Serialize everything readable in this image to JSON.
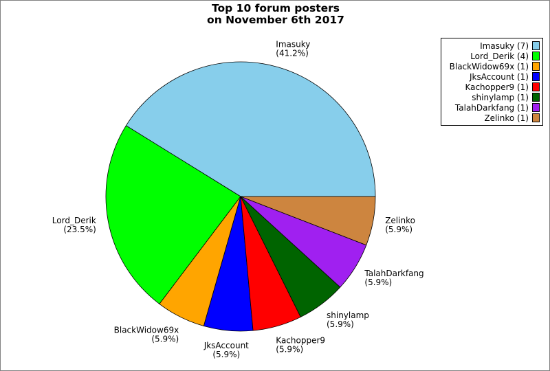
{
  "chart_data": {
    "type": "pie",
    "title_line1": "Top 10 forum posters",
    "title_line2": "on November 6th 2017",
    "slices": [
      {
        "name": "Imasuky",
        "count": 7,
        "percent_label": "(41.2%)",
        "legend_label": "Imasuky (7)",
        "color": "#87CEEB"
      },
      {
        "name": "Lord_Derik",
        "count": 4,
        "percent_label": "(23.5%)",
        "legend_label": "Lord_Derik (4)",
        "color": "#00FF00"
      },
      {
        "name": "BlackWidow69x",
        "count": 1,
        "percent_label": "(5.9%)",
        "legend_label": "BlackWidow69x (1)",
        "color": "#FFA500"
      },
      {
        "name": "JksAccount",
        "count": 1,
        "percent_label": "(5.9%)",
        "legend_label": "JksAccount (1)",
        "color": "#0000FF"
      },
      {
        "name": "Kachopper9",
        "count": 1,
        "percent_label": "(5.9%)",
        "legend_label": "Kachopper9 (1)",
        "color": "#FF0000"
      },
      {
        "name": "shinylamp",
        "count": 1,
        "percent_label": "(5.9%)",
        "legend_label": "shinylamp (1)",
        "color": "#006400"
      },
      {
        "name": "TalahDarkfang",
        "count": 1,
        "percent_label": "(5.9%)",
        "legend_label": "TalahDarkfang (1)",
        "color": "#A020F0"
      },
      {
        "name": "Zelinko",
        "count": 1,
        "percent_label": "(5.9%)",
        "legend_label": "Zelinko (1)",
        "color": "#CD853F"
      }
    ],
    "legend_position": "top-right"
  }
}
